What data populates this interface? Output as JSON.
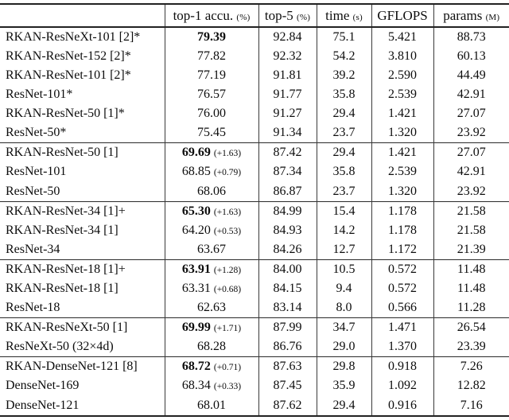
{
  "header": {
    "model_label": "",
    "cols": [
      {
        "label": "top-1 accu.",
        "unit": "(%)"
      },
      {
        "label": "top-5",
        "unit": "(%)"
      },
      {
        "label": "time",
        "unit": "(s)"
      },
      {
        "label": "GFLOPS",
        "unit": ""
      },
      {
        "label": "params",
        "unit": "(M)"
      }
    ]
  },
  "colors": {
    "rule": "#222222",
    "text": "#0d0d0d",
    "background": "#ffffff"
  },
  "groups": [
    {
      "rows": [
        {
          "model": "RKAN-ResNeXt-101 [2]*",
          "top1": "79.39",
          "top1_bold": true,
          "top1_delta": "",
          "top5": "92.84",
          "time": "75.1",
          "gflops": "5.421",
          "params": "88.73"
        },
        {
          "model": "RKAN-ResNet-152 [2]*",
          "top1": "77.82",
          "top1_bold": false,
          "top1_delta": "",
          "top5": "92.32",
          "time": "54.2",
          "gflops": "3.810",
          "params": "60.13"
        },
        {
          "model": "RKAN-ResNet-101 [2]*",
          "top1": "77.19",
          "top1_bold": false,
          "top1_delta": "",
          "top5": "91.81",
          "time": "39.2",
          "gflops": "2.590",
          "params": "44.49"
        },
        {
          "model": "ResNet-101*",
          "top1": "76.57",
          "top1_bold": false,
          "top1_delta": "",
          "top5": "91.77",
          "time": "35.8",
          "gflops": "2.539",
          "params": "42.91"
        },
        {
          "model": "RKAN-ResNet-50 [1]*",
          "top1": "76.00",
          "top1_bold": false,
          "top1_delta": "",
          "top5": "91.27",
          "time": "29.4",
          "gflops": "1.421",
          "params": "27.07"
        },
        {
          "model": "ResNet-50*",
          "top1": "75.45",
          "top1_bold": false,
          "top1_delta": "",
          "top5": "91.34",
          "time": "23.7",
          "gflops": "1.320",
          "params": "23.92"
        }
      ]
    },
    {
      "rows": [
        {
          "model": "RKAN-ResNet-50 [1]",
          "top1": "69.69",
          "top1_bold": true,
          "top1_delta": "(+1.63)",
          "top5": "87.42",
          "time": "29.4",
          "gflops": "1.421",
          "params": "27.07"
        },
        {
          "model": "ResNet-101",
          "top1": "68.85",
          "top1_bold": false,
          "top1_delta": "(+0.79)",
          "top5": "87.34",
          "time": "35.8",
          "gflops": "2.539",
          "params": "42.91"
        },
        {
          "model": "ResNet-50",
          "top1": "68.06",
          "top1_bold": false,
          "top1_delta": "",
          "top5": "86.87",
          "time": "23.7",
          "gflops": "1.320",
          "params": "23.92"
        }
      ]
    },
    {
      "rows": [
        {
          "model": "RKAN-ResNet-34 [1]+",
          "top1": "65.30",
          "top1_bold": true,
          "top1_delta": "(+1.63)",
          "top5": "84.99",
          "time": "15.4",
          "gflops": "1.178",
          "params": "21.58"
        },
        {
          "model": "RKAN-ResNet-34 [1]",
          "top1": "64.20",
          "top1_bold": false,
          "top1_delta": "(+0.53)",
          "top5": "84.93",
          "time": "14.2",
          "gflops": "1.178",
          "params": "21.58"
        },
        {
          "model": "ResNet-34",
          "top1": "63.67",
          "top1_bold": false,
          "top1_delta": "",
          "top5": "84.26",
          "time": "12.7",
          "gflops": "1.172",
          "params": "21.39"
        }
      ]
    },
    {
      "rows": [
        {
          "model": "RKAN-ResNet-18 [1]+",
          "top1": "63.91",
          "top1_bold": true,
          "top1_delta": "(+1.28)",
          "top5": "84.00",
          "time": "10.5",
          "gflops": "0.572",
          "params": "11.48"
        },
        {
          "model": "RKAN-ResNet-18 [1]",
          "top1": "63.31",
          "top1_bold": false,
          "top1_delta": "(+0.68)",
          "top5": "84.15",
          "time": "9.4",
          "gflops": "0.572",
          "params": "11.48"
        },
        {
          "model": "ResNet-18",
          "top1": "62.63",
          "top1_bold": false,
          "top1_delta": "",
          "top5": "83.14",
          "time": "8.0",
          "gflops": "0.566",
          "params": "11.28"
        }
      ]
    },
    {
      "rows": [
        {
          "model": "RKAN-ResNeXt-50 [1]",
          "top1": "69.99",
          "top1_bold": true,
          "top1_delta": "(+1.71)",
          "top5": "87.99",
          "time": "34.7",
          "gflops": "1.471",
          "params": "26.54"
        },
        {
          "model": "ResNeXt-50 (32×4d)",
          "top1": "68.28",
          "top1_bold": false,
          "top1_delta": "",
          "top5": "86.76",
          "time": "29.0",
          "gflops": "1.370",
          "params": "23.39"
        }
      ]
    },
    {
      "rows": [
        {
          "model": "RKAN-DenseNet-121 [8]",
          "top1": "68.72",
          "top1_bold": true,
          "top1_delta": "(+0.71)",
          "top5": "87.63",
          "time": "29.8",
          "gflops": "0.918",
          "params": "7.26"
        },
        {
          "model": "DenseNet-169",
          "top1": "68.34",
          "top1_bold": false,
          "top1_delta": "(+0.33)",
          "top5": "87.45",
          "time": "35.9",
          "gflops": "1.092",
          "params": "12.82"
        },
        {
          "model": "DenseNet-121",
          "top1": "68.01",
          "top1_bold": false,
          "top1_delta": "",
          "top5": "87.62",
          "time": "29.4",
          "gflops": "0.916",
          "params": "7.16"
        }
      ]
    }
  ]
}
